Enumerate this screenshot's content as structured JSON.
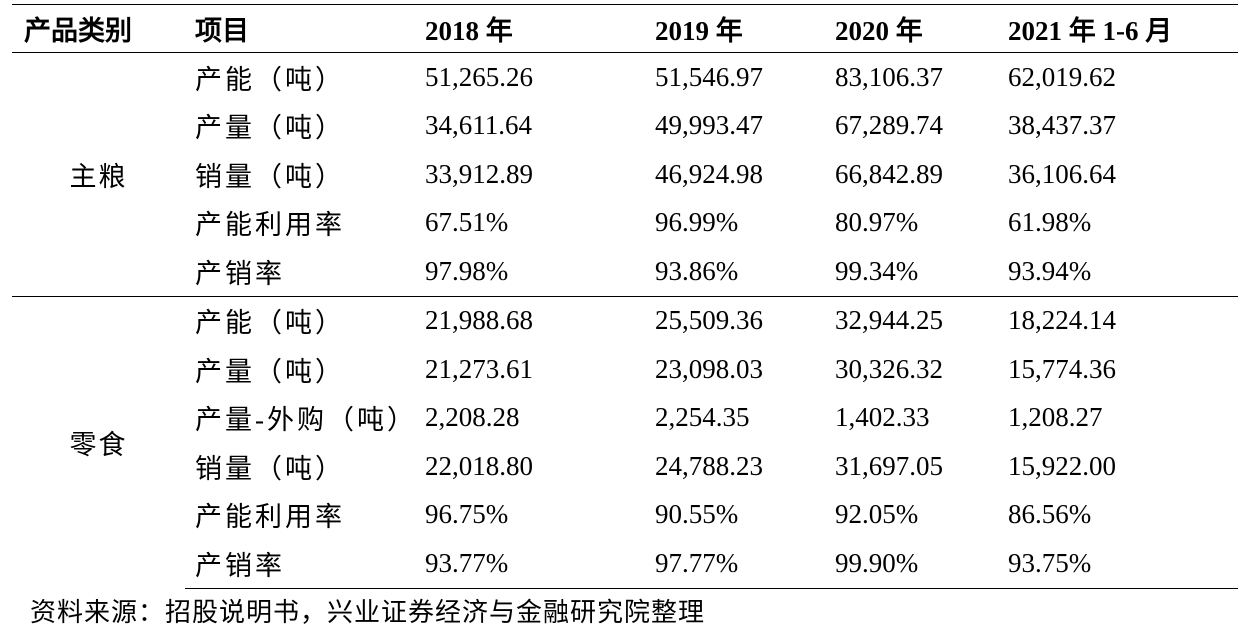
{
  "table": {
    "headers": [
      "产品类别",
      "项目",
      "2018 年",
      "2019 年",
      "2020 年",
      "2021 年 1-6 月"
    ],
    "groups": [
      {
        "category": "主粮",
        "rows": [
          {
            "item": "产能（吨）",
            "values": [
              "51,265.26",
              "51,546.97",
              "83,106.37",
              "62,019.62"
            ]
          },
          {
            "item": "产量（吨）",
            "values": [
              "34,611.64",
              "49,993.47",
              "67,289.74",
              "38,437.37"
            ]
          },
          {
            "item": "销量（吨）",
            "values": [
              "33,912.89",
              "46,924.98",
              "66,842.89",
              "36,106.64"
            ]
          },
          {
            "item": "产能利用率",
            "values": [
              "67.51%",
              "96.99%",
              "80.97%",
              "61.98%"
            ]
          },
          {
            "item": "产销率",
            "values": [
              "97.98%",
              "93.86%",
              "99.34%",
              "93.94%"
            ]
          }
        ]
      },
      {
        "category": "零食",
        "rows": [
          {
            "item": "产能（吨）",
            "values": [
              "21,988.68",
              "25,509.36",
              "32,944.25",
              "18,224.14"
            ]
          },
          {
            "item": "产量（吨）",
            "values": [
              "21,273.61",
              "23,098.03",
              "30,326.32",
              "15,774.36"
            ]
          },
          {
            "item": "产量-外购（吨）",
            "values": [
              "2,208.28",
              "2,254.35",
              "1,402.33",
              "1,208.27"
            ]
          },
          {
            "item": "销量（吨）",
            "values": [
              "22,018.80",
              "24,788.23",
              "31,697.05",
              "15,922.00"
            ]
          },
          {
            "item": "产能利用率",
            "values": [
              "96.75%",
              "90.55%",
              "92.05%",
              "86.56%"
            ]
          },
          {
            "item": "产销率",
            "values": [
              "93.77%",
              "97.77%",
              "99.90%",
              "93.75%"
            ]
          }
        ]
      }
    ]
  },
  "source": "资料来源：招股说明书，兴业证券经济与金融研究院整理"
}
